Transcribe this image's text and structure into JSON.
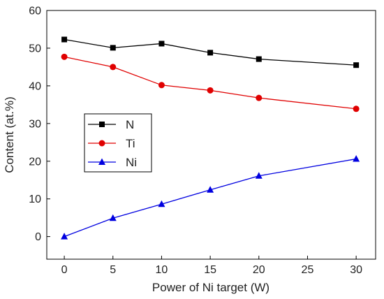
{
  "chart_data": {
    "type": "line",
    "xlabel": "Power of Ni target (W)",
    "ylabel": "Content (at.%)",
    "xlim": [
      -1.8,
      32
    ],
    "ylim": [
      -6,
      60
    ],
    "xticks": [
      "0",
      "5",
      "10",
      "15",
      "20",
      "25",
      "30"
    ],
    "yticks": [
      "0",
      "10",
      "20",
      "30",
      "40",
      "50",
      "60"
    ],
    "grid": false,
    "legend_position": "middle-left",
    "x": [
      0,
      5,
      10,
      15,
      20,
      30
    ],
    "series": [
      {
        "name": "N",
        "color": "#000000",
        "marker": "square",
        "values": [
          52.3,
          50.1,
          51.2,
          48.8,
          47.1,
          45.5
        ]
      },
      {
        "name": "Ti",
        "color": "#e00000",
        "marker": "circle",
        "values": [
          47.7,
          45.0,
          40.2,
          38.8,
          36.8,
          33.9
        ]
      },
      {
        "name": "Ni",
        "color": "#0000e0",
        "marker": "triangle",
        "values": [
          0.0,
          4.9,
          8.6,
          12.4,
          16.1,
          20.6
        ]
      }
    ]
  }
}
